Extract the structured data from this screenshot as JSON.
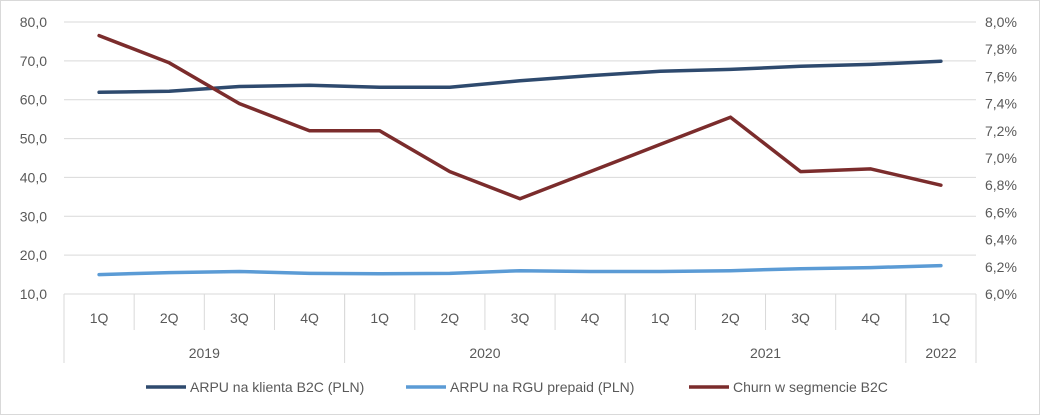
{
  "chart_data": {
    "type": "line",
    "title": "",
    "xlabel": "",
    "ylabel": "",
    "categories": [
      "1Q",
      "2Q",
      "3Q",
      "4Q",
      "1Q",
      "2Q",
      "3Q",
      "4Q",
      "1Q",
      "2Q",
      "3Q",
      "4Q",
      "1Q"
    ],
    "year_groups": [
      {
        "label": "2019",
        "count": 4
      },
      {
        "label": "2020",
        "count": 4
      },
      {
        "label": "2021",
        "count": 4
      },
      {
        "label": "2022",
        "count": 1
      }
    ],
    "y_left": {
      "range": [
        10,
        80
      ],
      "ticks": [
        "10,0",
        "20,0",
        "30,0",
        "40,0",
        "50,0",
        "60,0",
        "70,0",
        "80,0"
      ]
    },
    "y_right": {
      "range": [
        6.0,
        8.0
      ],
      "ticks": [
        "6,0%",
        "6,2%",
        "6,4%",
        "6,6%",
        "6,8%",
        "7,0%",
        "7,2%",
        "7,4%",
        "7,6%",
        "7,8%",
        "8,0%"
      ]
    },
    "grid": true,
    "legend_position": "bottom",
    "series": [
      {
        "name": "ARPU na klienta B2C (PLN)",
        "axis": "left",
        "color": "#2e4a6e",
        "values": [
          61.9,
          62.2,
          63.4,
          63.7,
          63.2,
          63.2,
          64.9,
          66.2,
          67.3,
          67.8,
          68.6,
          69.1,
          69.9
        ]
      },
      {
        "name": "ARPU na RGU prepaid (PLN)",
        "axis": "left",
        "color": "#5b9bd5",
        "values": [
          15.0,
          15.5,
          15.8,
          15.3,
          15.2,
          15.3,
          16.0,
          15.8,
          15.8,
          16.0,
          16.5,
          16.8,
          17.3
        ]
      },
      {
        "name": "Churn w segmencie B2C",
        "axis": "right",
        "color": "#7b2c2c",
        "values": [
          7.9,
          7.7,
          7.4,
          7.2,
          7.2,
          6.9,
          6.7,
          6.9,
          7.1,
          7.3,
          6.9,
          6.92,
          6.8
        ]
      }
    ]
  }
}
